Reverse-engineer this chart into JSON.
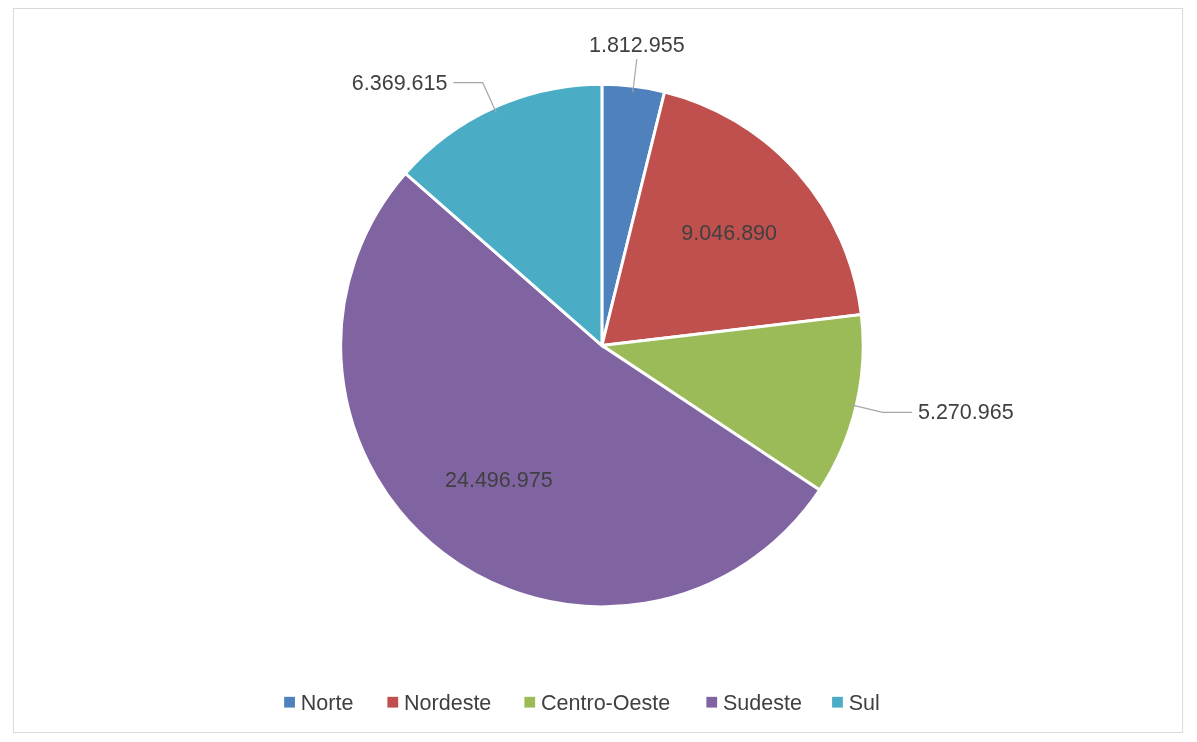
{
  "chart_data": {
    "type": "pie",
    "categories": [
      "Norte",
      "Nordeste",
      "Centro-Oeste",
      "Sudeste",
      "Sul"
    ],
    "values": [
      1812955,
      9046890,
      5270965,
      24496975,
      6369615
    ],
    "colors": [
      "#4f81bd",
      "#c0504d",
      "#9bbb59",
      "#8064a2",
      "#4bacc6"
    ],
    "value_labels": [
      "1.812.955",
      "9.046.890",
      "5.270.965",
      "24.496.975",
      "6.369.615"
    ],
    "legend": "bottom"
  }
}
